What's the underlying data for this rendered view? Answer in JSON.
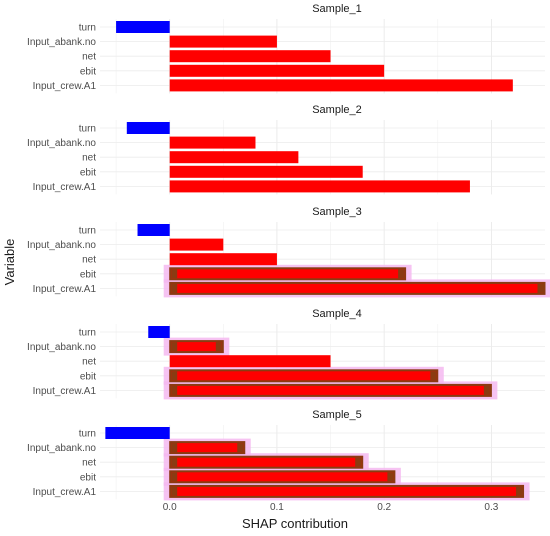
{
  "chart_data": {
    "type": "bar",
    "orientation": "horizontal",
    "xlabel": "SHAP contribution",
    "ylabel": "Variable",
    "xlim": [
      -0.065,
      0.35
    ],
    "x_ticks": [
      "0.0",
      "0.1",
      "0.2",
      "0.3"
    ],
    "x_tick_values": [
      0.0,
      0.1,
      0.2,
      0.3
    ],
    "grid": true,
    "legend": "none",
    "categories": [
      "turn",
      "Input_abank.no",
      "net",
      "ebit",
      "Input_crew.A1"
    ],
    "colors": {
      "positive": "#ff0000",
      "negative": "#0000ff",
      "highlight_overlay": "#8a3b12",
      "highlight_glow": "#f5b8f0"
    },
    "panels": [
      {
        "title": "Sample_1",
        "values": [
          -0.05,
          0.1,
          0.15,
          0.2,
          0.32
        ],
        "highlight": [
          null,
          null,
          null,
          null,
          null
        ]
      },
      {
        "title": "Sample_2",
        "values": [
          -0.04,
          0.08,
          0.12,
          0.18,
          0.28
        ],
        "highlight": [
          null,
          null,
          null,
          null,
          null
        ]
      },
      {
        "title": "Sample_3",
        "values": [
          -0.03,
          0.05,
          0.1,
          0.22,
          0.35
        ],
        "highlight": [
          null,
          null,
          null,
          0.22,
          0.35
        ]
      },
      {
        "title": "Sample_4",
        "values": [
          -0.02,
          0.05,
          0.15,
          0.25,
          0.3
        ],
        "highlight": [
          null,
          0.05,
          null,
          0.25,
          0.3
        ]
      },
      {
        "title": "Sample_5",
        "values": [
          -0.06,
          0.07,
          0.18,
          0.21,
          0.33
        ],
        "highlight": [
          null,
          0.07,
          0.18,
          0.21,
          0.33
        ]
      }
    ]
  }
}
